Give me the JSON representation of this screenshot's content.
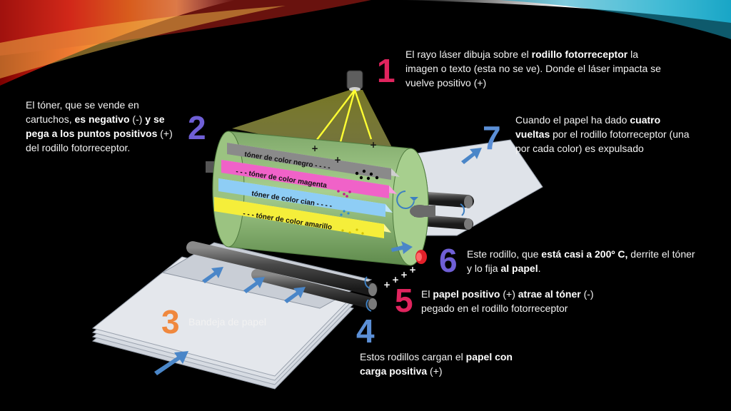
{
  "slide": {
    "steps": [
      {
        "number": "1",
        "color": "#e0245e",
        "parts": [
          {
            "t": "El rayo láser dibuja sobre el "
          },
          {
            "t": "rodillo fotorreceptor",
            "b": true
          },
          {
            "t": " la imagen o texto (esta no se ve). Donde el láser impacta se vuelve positivo (+)"
          }
        ]
      },
      {
        "number": "2",
        "color": "#6f5fd6",
        "parts": [
          {
            "t": "El tóner, que se vende en cartuchos, "
          },
          {
            "t": "es negativo",
            "b": true
          },
          {
            "t": " (-) "
          },
          {
            "t": "y se pega a los puntos positivos",
            "b": true
          },
          {
            "t": " (+) del rodillo fotorreceptor."
          }
        ]
      },
      {
        "number": "3",
        "color": "#f0883e",
        "parts": [
          {
            "t": "Bandeja de papel"
          }
        ]
      },
      {
        "number": "4",
        "color": "#5b8fd6",
        "parts": [
          {
            "t": "Estos rodillos cargan el "
          },
          {
            "t": "papel con carga positiva",
            "b": true
          },
          {
            "t": " (+)"
          }
        ]
      },
      {
        "number": "5",
        "color": "#e0245e",
        "parts": [
          {
            "t": "El "
          },
          {
            "t": "papel positivo",
            "b": true
          },
          {
            "t": " (+) "
          },
          {
            "t": "atrae al tóner",
            "b": true
          },
          {
            "t": " (-) pegado en el rodillo fotorreceptor"
          }
        ]
      },
      {
        "number": "6",
        "color": "#6f5fd6",
        "parts": [
          {
            "t": "Este rodillo, que "
          },
          {
            "t": "está casi a 200º C,",
            "b": true
          },
          {
            "t": " derrite el tóner y lo fija "
          },
          {
            "t": "al papel",
            "b": true
          },
          {
            "t": "."
          }
        ]
      },
      {
        "number": "7",
        "color": "#5b8fd6",
        "parts": [
          {
            "t": "Cuando el papel ha dado "
          },
          {
            "t": "cuatro vueltas",
            "b": true
          },
          {
            "t": " por el rodillo fotorreceptor (una por cada color) es expulsado"
          }
        ]
      }
    ],
    "toners": [
      {
        "label": "tóner de color negro - - - -",
        "color": "#8a8a8a"
      },
      {
        "label": "- - - tóner de color magenta",
        "color": "#f062c8"
      },
      {
        "label": "tóner de color cian - - - -",
        "color": "#8ecdf5"
      },
      {
        "label": "- - - tóner de color amarillo",
        "color": "#f5ee3a"
      }
    ],
    "laser_plus_signs": [
      "+",
      "+",
      "+"
    ],
    "paper_plus_signs": [
      "+",
      "+",
      "+",
      "+"
    ]
  }
}
